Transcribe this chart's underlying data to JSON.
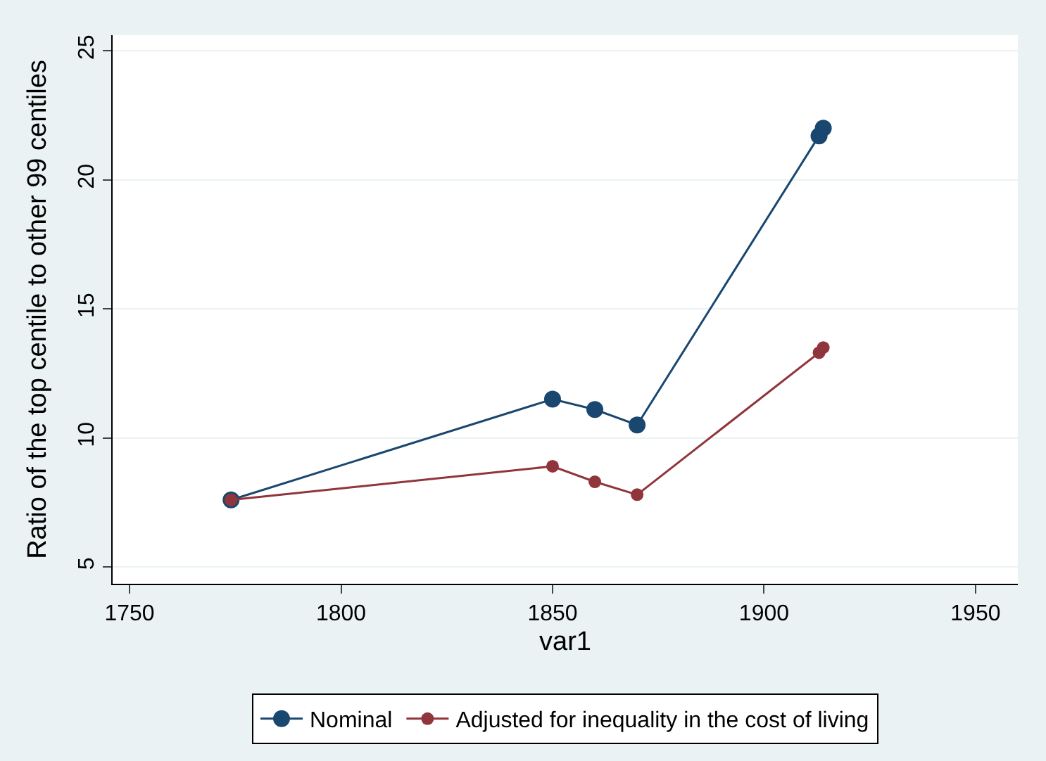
{
  "chart_data": {
    "type": "line",
    "xlabel": "var1",
    "ylabel": "Ratio of the top centile to other 99 centiles",
    "x": [
      1774,
      1850,
      1860,
      1870,
      1913,
      1914
    ],
    "series": [
      {
        "name": "Nominal",
        "color": "#1a476f",
        "values": [
          7.6,
          11.5,
          11.1,
          10.5,
          21.7,
          22.0
        ]
      },
      {
        "name": "Adjusted for inequality in the cost of living",
        "color": "#90353b",
        "values": [
          7.6,
          8.9,
          8.3,
          7.8,
          13.3,
          13.5
        ]
      }
    ],
    "xlim": [
      1746,
      1960
    ],
    "xticks": [
      1750,
      1800,
      1850,
      1900,
      1950
    ],
    "ylim": [
      4.35,
      25.6
    ],
    "yticks": [
      5,
      10,
      15,
      20,
      25
    ],
    "grid": "y",
    "legend": "bottom",
    "marker": "circle",
    "line_style": "solid"
  }
}
